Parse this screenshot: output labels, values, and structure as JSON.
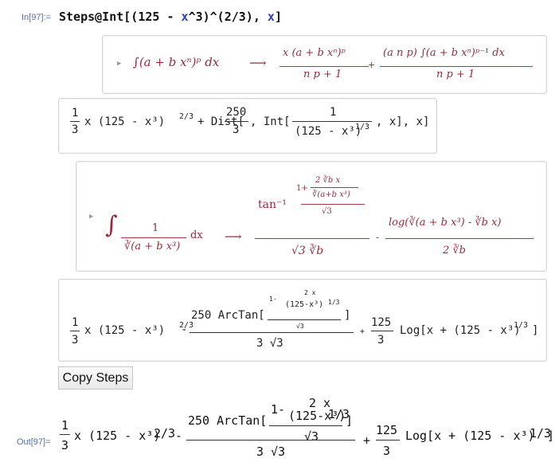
{
  "input": {
    "label": "In[97]:=",
    "code_pre": "Steps@Int[(125 - ",
    "code_var1": "x",
    "code_mid": "^3)^(2/3), ",
    "code_var2": "x",
    "code_post": "]"
  },
  "step1": {
    "integral": "∫(a + b xⁿ)ᵖ dx",
    "arrow": "⟶",
    "t1_num": "x (a + b xⁿ)ᵖ",
    "t1_den": "n p + 1",
    "plus": "+",
    "t2_num": "(a n p) ∫(a + b xⁿ)ᵖ⁻¹ dx",
    "t2_den": "n p + 1"
  },
  "step2": {
    "frac_num": "1",
    "frac_den": "3",
    "x_part": "x (125 - x³)",
    "exp": "2/3",
    "dist": "+ Dist[",
    "c_num": "250",
    "c_den": "3",
    "int": ", Int[",
    "i_num": "1",
    "i_den": "(125 - x³)",
    "i_exp": "1/3",
    "tail": ", x], x]"
  },
  "step3": {
    "int_num": "1",
    "int_den": "∛(a + b x³)",
    "dx": "dx",
    "arrow": "⟶",
    "tan": "tan⁻¹",
    "tan_inner_1": "1+",
    "tan_inner_num": "2 ∛b x",
    "tan_inner_den": "∛(a+b x³)",
    "tan_inner_den2": "√3",
    "tan_den": "√3 ∛b",
    "minus": "-",
    "log": "log(∛(a + b x³) - ∛b x)",
    "log_den": "2 ∛b"
  },
  "step4": {
    "frac_num": "1",
    "frac_den": "3",
    "x_part": "x (125 - x³)",
    "exp": "2/3",
    "minus": "-",
    "arctan_pre": "250 ArcTan[",
    "in_top": "1-",
    "in_num": "2 x",
    "in_den": "(125-x³)",
    "in_exp": "1/3",
    "in_sqrt": "√3",
    "bracket_close": "]",
    "arctan_den": "3 √3",
    "plus": "+",
    "c_num": "125",
    "c_den": "3",
    "log": "Log[x + (125 - x³)",
    "log_exp": "1/3",
    "log_end": "]"
  },
  "copy_button": "Copy Steps",
  "output": {
    "label": "Out[97]=",
    "frac_num": "1",
    "frac_den": "3",
    "x_part": "x (125 - x³)",
    "exp": "2/3",
    "minus": "-",
    "arctan_pre": "250 ArcTan[",
    "in_top": "1-",
    "in_num": "2 x",
    "in_den": "(125-x³)",
    "in_exp": "1/3",
    "in_sqrt": "√3",
    "bracket_close": "]",
    "arctan_den": "3 √3",
    "plus": "+",
    "c_num": "125",
    "c_den": "3",
    "log": "Log[x + (125 - x³)",
    "log_exp": "1/3",
    "log_end": "]"
  }
}
